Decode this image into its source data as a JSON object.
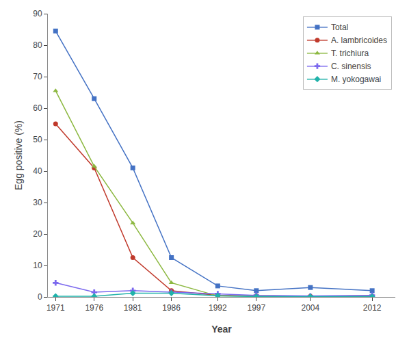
{
  "chart_data": {
    "type": "line",
    "x": [
      1971,
      1976,
      1981,
      1986,
      1992,
      1997,
      2004,
      2012
    ],
    "series": [
      {
        "name": "Total",
        "color": "#4472C4",
        "marker": "square",
        "values": [
          84.5,
          63.0,
          41.0,
          12.5,
          3.5,
          2.0,
          3.0,
          2.0
        ]
      },
      {
        "name": "A. lambricoides",
        "color": "#C0392B",
        "marker": "circle",
        "values": [
          55.0,
          41.0,
          12.5,
          2.0,
          0.5,
          0.3,
          0.2,
          0.2
        ]
      },
      {
        "name": "T. trichiura",
        "color": "#8CB840",
        "marker": "triangle-up",
        "values": [
          65.5,
          41.5,
          23.5,
          4.5,
          0.3,
          0.2,
          0.1,
          0.1
        ]
      },
      {
        "name": "C. sinensis",
        "color": "#7B68EE",
        "marker": "cross",
        "values": [
          4.5,
          1.5,
          2.0,
          1.5,
          1.0,
          0.5,
          0.3,
          0.5
        ]
      },
      {
        "name": "M. yokogawai",
        "color": "#20B2AA",
        "marker": "diamond",
        "values": [
          0.2,
          0.2,
          1.2,
          1.2,
          0.4,
          0.1,
          0.1,
          0.1
        ]
      }
    ],
    "xlabel": "Year",
    "ylabel": "Egg positive (%)",
    "xlim": [
      1970,
      2015
    ],
    "xticks": [
      1971,
      1976,
      1981,
      1986,
      1992,
      1997,
      2004,
      2012
    ],
    "ylim": [
      0,
      90
    ],
    "yticks": [
      0,
      10,
      20,
      30,
      40,
      50,
      60,
      70,
      80,
      90
    ],
    "grid": false,
    "legend": "upper right"
  }
}
